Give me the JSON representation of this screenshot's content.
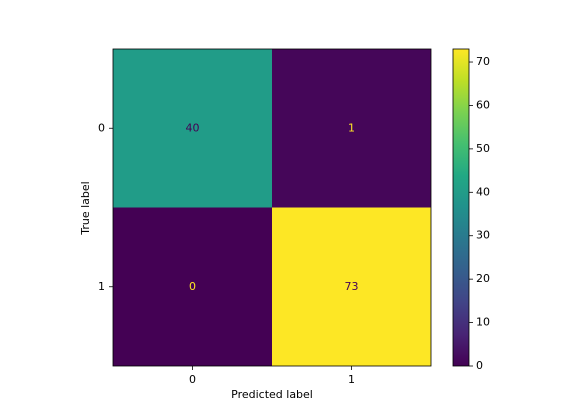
{
  "chart_data": {
    "type": "heatmap",
    "x_categories": [
      "0",
      "1"
    ],
    "y_categories": [
      "0",
      "1"
    ],
    "values": [
      [
        40,
        1
      ],
      [
        0,
        73
      ]
    ],
    "xlabel": "Predicted label",
    "ylabel": "True label",
    "colormap": "viridis",
    "clim": [
      0,
      73
    ],
    "colorbar_ticks": [
      0,
      10,
      20,
      30,
      40,
      50,
      60,
      70
    ]
  }
}
